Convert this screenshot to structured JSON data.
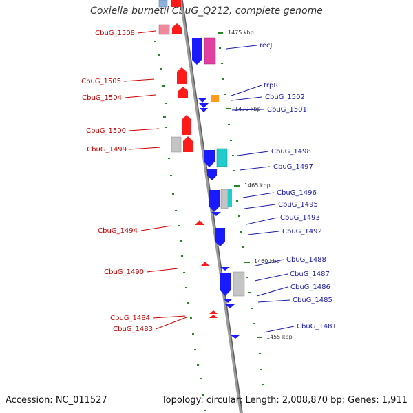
{
  "title": "Coxiella burnetii CbuG_Q212, complete genome",
  "footer": {
    "accession": "Accession: NC_011527",
    "summary": "Topology: circular; Length: 2,008,870 bp; Genes: 1,911"
  },
  "colors": {
    "forward": "#ff1a1a",
    "reverse": "#1a1aff",
    "label_left": "#cc0000",
    "label_right": "#1a1aaa",
    "ruler_tick": "#228822",
    "backbone": "#888888"
  },
  "scale_labels": [
    "1475 kbp",
    "1470 kbp",
    "1465 kbp",
    "1460 kbp",
    "1455 kbp"
  ],
  "left_genes": [
    "CbuG_1508",
    "CbuG_1505",
    "CbuG_1504",
    "CbuG_1500",
    "CbuG_1499",
    "CbuG_1494",
    "CbuG_1490",
    "CbuG_1484",
    "CbuG_1483"
  ],
  "right_genes": [
    "recJ",
    "trpR",
    "CbuG_1502",
    "CbuG_1501",
    "CbuG_1498",
    "CbuG_1497",
    "CbuG_1496",
    "CbuG_1495",
    "CbuG_1493",
    "CbuG_1492",
    "CbuG_1488",
    "CbuG_1487",
    "CbuG_1486",
    "CbuG_1485",
    "CbuG_1481"
  ]
}
